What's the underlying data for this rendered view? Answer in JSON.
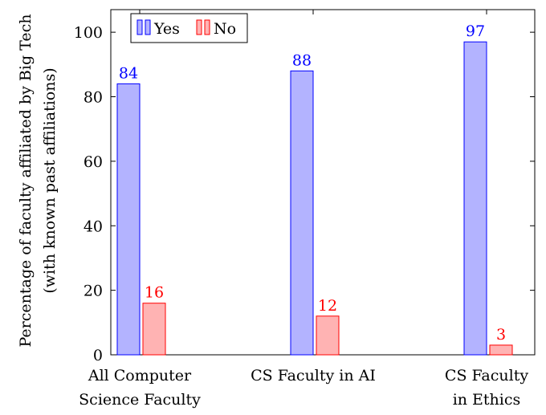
{
  "chart_data": {
    "type": "bar",
    "categories": [
      [
        "All Computer",
        "Science Faculty"
      ],
      [
        "CS Faculty in AI"
      ],
      [
        "CS Faculty",
        "in Ethics"
      ]
    ],
    "series": [
      {
        "name": "Yes",
        "values": [
          84,
          88,
          97
        ],
        "fill": "#b3b3ff",
        "stroke": "#0000ff",
        "label_color": "#0000ff"
      },
      {
        "name": "No",
        "values": [
          16,
          12,
          3
        ],
        "fill": "#ffb3b3",
        "stroke": "#ff0000",
        "label_color": "#ff0000"
      }
    ],
    "ylabel_lines": [
      "Percentage of faculty affiliated by Big Tech",
      "(with known past affiliations)"
    ],
    "ylim": [
      0,
      107
    ],
    "yticks": [
      0,
      20,
      40,
      60,
      80,
      100
    ],
    "grid": false,
    "legend_position": "top-left"
  }
}
